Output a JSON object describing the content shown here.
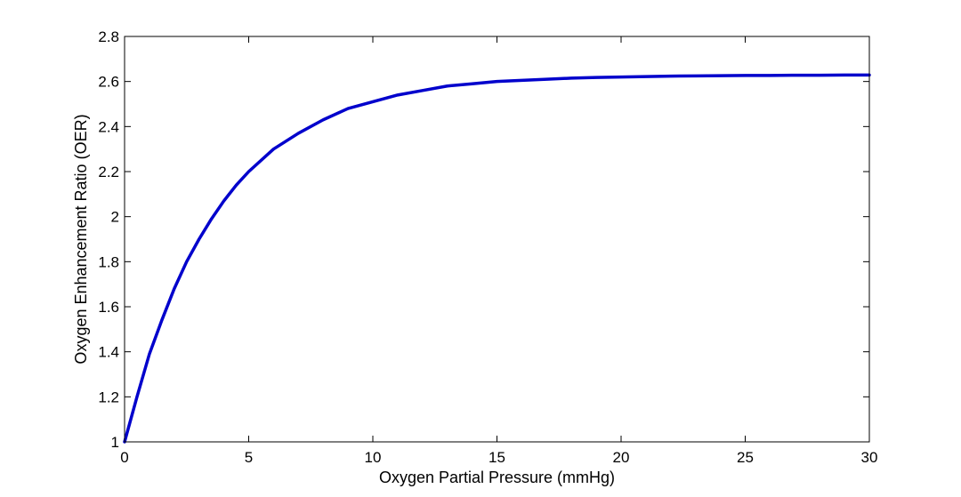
{
  "chart_data": {
    "type": "line",
    "title": "",
    "xlabel": "Oxygen Partial Pressure (mmHg)",
    "ylabel": "Oxygen Enhancement Ratio (OER)",
    "xlim": [
      0,
      30
    ],
    "ylim": [
      1,
      2.8
    ],
    "xticks": [
      0,
      5,
      10,
      15,
      20,
      25,
      30
    ],
    "xtick_labels": [
      "0",
      "5",
      "10",
      "15",
      "20",
      "25",
      "30"
    ],
    "yticks": [
      1,
      1.2,
      1.4,
      1.6,
      1.8,
      2,
      2.2,
      2.4,
      2.6,
      2.8
    ],
    "ytick_labels": [
      "1",
      "1.2",
      "1.4",
      "1.6",
      "1.8",
      "2",
      "2.2",
      "2.4",
      "2.6",
      "2.8"
    ],
    "grid": false,
    "legend": "none",
    "series": [
      {
        "color": "#0000cc",
        "x": [
          0,
          0.5,
          1,
          1.5,
          2,
          2.5,
          3,
          3.5,
          4,
          4.5,
          5,
          6,
          7,
          8,
          9,
          10,
          11,
          12,
          13,
          14,
          15,
          16,
          17,
          18,
          19,
          20,
          21,
          22,
          23,
          24,
          25,
          26,
          27,
          28,
          29,
          30
        ],
        "y": [
          1.0,
          1.2,
          1.39,
          1.54,
          1.68,
          1.8,
          1.9,
          1.99,
          2.07,
          2.14,
          2.2,
          2.3,
          2.37,
          2.43,
          2.48,
          2.51,
          2.54,
          2.56,
          2.58,
          2.59,
          2.6,
          2.605,
          2.61,
          2.615,
          2.618,
          2.62,
          2.622,
          2.624,
          2.625,
          2.626,
          2.627,
          2.627,
          2.628,
          2.628,
          2.629,
          2.629
        ]
      }
    ]
  }
}
